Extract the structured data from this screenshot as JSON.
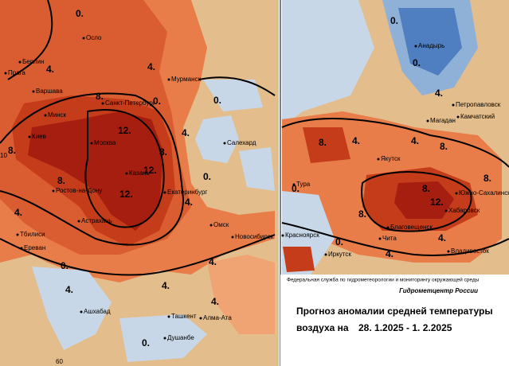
{
  "left_map": {
    "cities": [
      "Осло",
      "Берлин",
      "Прага",
      "Варшава",
      "Санкт-Петербург",
      "Мурманск",
      "Минск",
      "Киев",
      "Москва",
      "Казань",
      "Ростов-на-Дону",
      "Екатеринбург",
      "Салехард",
      "Астрахань",
      "Тбилиси",
      "Ереван",
      "Омск",
      "Новосибирск",
      "Ашхабад",
      "Ташкент",
      "Алма-Ата",
      "Душанбе"
    ],
    "contour_labels": [
      "0.",
      "4.",
      "4.",
      "8.",
      "0.",
      "12.",
      "12.",
      "12.",
      "8.",
      "8.",
      "8.",
      "4.",
      "4.",
      "4.",
      "0.",
      "0.",
      "0.",
      "4.",
      "4.",
      "4.",
      "4.",
      "0."
    ],
    "grid_labels": [
      "10",
      "60"
    ]
  },
  "right_map": {
    "cities": [
      "Анадырь",
      "Петропавловск",
      "Камчатский",
      "Магадан",
      "Якутск",
      "Тура",
      "Южно-Сахалинск",
      "Хабаровск",
      "Благовещенск",
      "Красноярск",
      "Иркутск",
      "Чита",
      "Владивосток"
    ],
    "contour_labels": [
      "0.",
      "0.",
      "4.",
      "4.",
      "4.",
      "8.",
      "8.",
      "8.",
      "8.",
      "12.",
      "4.",
      "0.",
      "0.",
      "4.",
      "8."
    ]
  },
  "caption": {
    "agency": "Федеральная служба по гидрометеорологии и мониторингу окружающей среды",
    "center": "Гидрометцентр России",
    "title_line1": "Прогноз аномалии средней температуры",
    "title_line2": "воздуха на",
    "dates": "28. 1.2025 -  1. 2.2025"
  }
}
